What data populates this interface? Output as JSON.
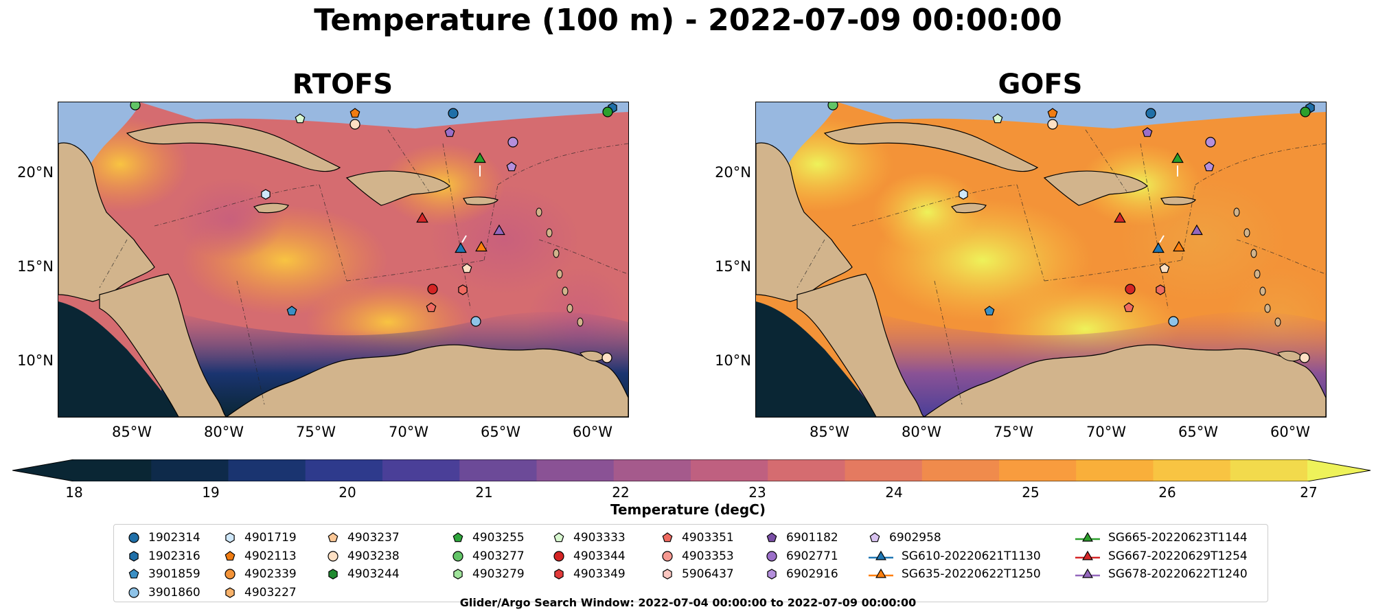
{
  "title": "Temperature (100 m) - 2022-07-09 00:00:00",
  "panels": [
    {
      "name": "RTOFS"
    },
    {
      "name": "GOFS"
    }
  ],
  "lat_labels": [
    "20°N",
    "15°N",
    "10°N"
  ],
  "lon_labels": [
    "85°W",
    "80°W",
    "75°W",
    "70°W",
    "65°W",
    "60°W"
  ],
  "colorbar": {
    "title": "Temperature (degC)",
    "ticks": [
      "18",
      "19",
      "20",
      "21",
      "22",
      "23",
      "24",
      "25",
      "26",
      "27"
    ],
    "colors": [
      "#0a2634",
      "#0e2a4a",
      "#1a3470",
      "#2e3a8c",
      "#4a3f98",
      "#6c4a98",
      "#8a5295",
      "#a55a8c",
      "#bf6080",
      "#d56c70",
      "#e47a60",
      "#f08b4c",
      "#f89c3e",
      "#f9af3a",
      "#f8c442",
      "#f2da4c",
      "#eef25a"
    ]
  },
  "legend": {
    "columns": [
      [
        {
          "label": "1902314",
          "marker": "circle",
          "color": "#1f6fa8"
        },
        {
          "label": "1902316",
          "marker": "hexagon",
          "color": "#1f6fa8"
        },
        {
          "label": "3901859",
          "marker": "pentagon",
          "color": "#3b8fc4"
        },
        {
          "label": "3901860",
          "marker": "circle",
          "color": "#8ec3e8"
        }
      ],
      [
        {
          "label": "4901719",
          "marker": "hexagon",
          "color": "#cfe8fa"
        },
        {
          "label": "4902113",
          "marker": "pentagon",
          "color": "#f07c12"
        },
        {
          "label": "4902339",
          "marker": "circle",
          "color": "#f39338"
        },
        {
          "label": "4903227",
          "marker": "hexagon",
          "color": "#f8b26a"
        }
      ],
      [
        {
          "label": "4903237",
          "marker": "pentagon",
          "color": "#fbc796"
        },
        {
          "label": "4903238",
          "marker": "circle",
          "color": "#fde0c4"
        },
        {
          "label": "4903244",
          "marker": "hexagon",
          "color": "#208a30"
        }
      ],
      [
        {
          "label": "4903255",
          "marker": "pentagon",
          "color": "#2fa63c"
        },
        {
          "label": "4903277",
          "marker": "circle",
          "color": "#62c467"
        },
        {
          "label": "4903279",
          "marker": "hexagon",
          "color": "#9fe39a"
        }
      ],
      [
        {
          "label": "4903333",
          "marker": "pentagon",
          "color": "#d8f8d0"
        },
        {
          "label": "4903344",
          "marker": "circle",
          "color": "#d42424"
        },
        {
          "label": "4903349",
          "marker": "hexagon",
          "color": "#e23a3a"
        }
      ],
      [
        {
          "label": "4903351",
          "marker": "pentagon",
          "color": "#ef6a60"
        },
        {
          "label": "4903353",
          "marker": "circle",
          "color": "#f59890"
        },
        {
          "label": "5906437",
          "marker": "hexagon",
          "color": "#fbc6c0"
        }
      ],
      [
        {
          "label": "6901182",
          "marker": "pentagon",
          "color": "#7a4fa6"
        },
        {
          "label": "6902771",
          "marker": "circle",
          "color": "#9b6fc8"
        },
        {
          "label": "6902916",
          "marker": "hexagon",
          "color": "#b48fdc"
        }
      ],
      [
        {
          "label": "6902958",
          "marker": "pentagon",
          "color": "#d8c2f0"
        },
        {
          "label": "SG610-20220621T1130",
          "marker": "line-triangle",
          "color": "#1f77b4"
        },
        {
          "label": "SG635-20220622T1250",
          "marker": "line-triangle",
          "color": "#ff7f0e"
        }
      ],
      [
        {
          "label": "SG665-20220623T1144",
          "marker": "line-triangle",
          "color": "#2ca02c"
        },
        {
          "label": "SG667-20220629T1254",
          "marker": "line-triangle",
          "color": "#d62728"
        },
        {
          "label": "SG678-20220622T1240",
          "marker": "line-triangle",
          "color": "#9467bd"
        }
      ]
    ]
  },
  "footer": "Glider/Argo Search Window: 2022-07-04 00:00:00 to 2022-07-09 00:00:00"
}
